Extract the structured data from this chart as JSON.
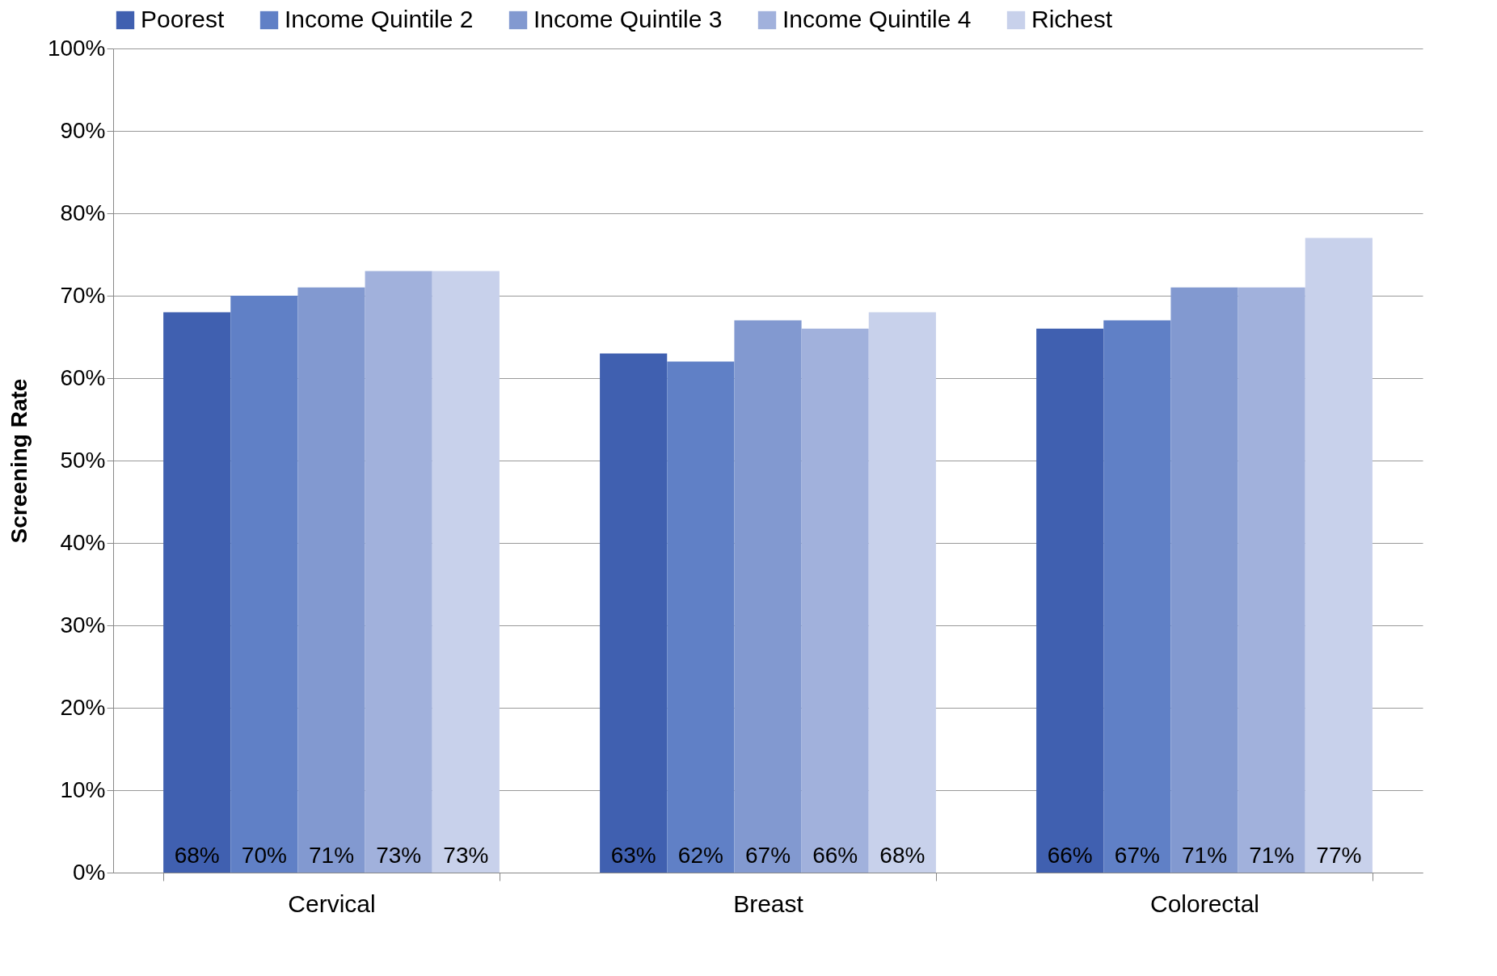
{
  "chart_data": {
    "type": "bar",
    "ylabel": "Screening Rate",
    "categories": [
      "Cervical",
      "Breast",
      "Colorectal"
    ],
    "series": [
      {
        "name": "Poorest",
        "color": "#4060b0",
        "values": [
          68,
          63,
          66
        ],
        "value_labels": [
          "68%",
          "63%",
          "66%"
        ]
      },
      {
        "name": "Income Quintile 2",
        "color": "#6080c6",
        "values": [
          70,
          62,
          67
        ],
        "value_labels": [
          "70%",
          "62%",
          "67%"
        ]
      },
      {
        "name": "Income Quintile 3",
        "color": "#8299d0",
        "values": [
          71,
          67,
          71
        ],
        "value_labels": [
          "71%",
          "67%",
          "71%"
        ]
      },
      {
        "name": "Income Quintile 4",
        "color": "#a1b1dc",
        "values": [
          73,
          66,
          71
        ],
        "value_labels": [
          "73%",
          "66%",
          "71%"
        ]
      },
      {
        "name": "Richest",
        "color": "#c8d1eb",
        "values": [
          73,
          68,
          77
        ],
        "value_labels": [
          "73%",
          "68%",
          "77%"
        ]
      }
    ],
    "ylim": [
      0,
      100
    ],
    "yticks": [
      {
        "value": 0,
        "label": "0%"
      },
      {
        "value": 10,
        "label": "10%"
      },
      {
        "value": 20,
        "label": "20%"
      },
      {
        "value": 30,
        "label": "30%"
      },
      {
        "value": 40,
        "label": "40%"
      },
      {
        "value": 50,
        "label": "50%"
      },
      {
        "value": 60,
        "label": "60%"
      },
      {
        "value": 70,
        "label": "70%"
      },
      {
        "value": 80,
        "label": "80%"
      },
      {
        "value": 90,
        "label": "90%"
      },
      {
        "value": 100,
        "label": "100%"
      }
    ],
    "grid": "y",
    "legend": "top"
  }
}
